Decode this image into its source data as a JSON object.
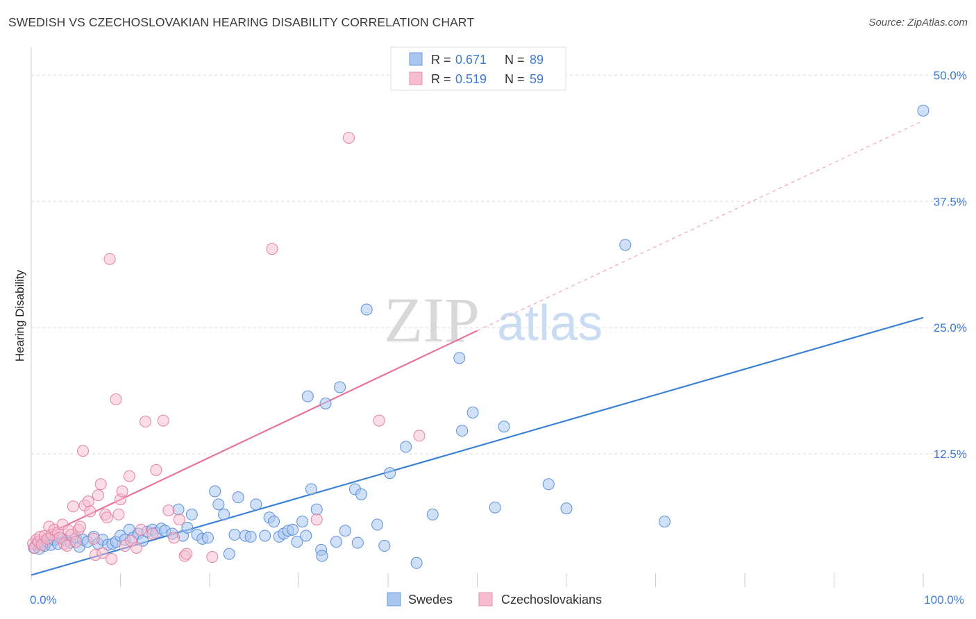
{
  "title": "SWEDISH VS CZECHOSLOVAKIAN HEARING DISABILITY CORRELATION CHART",
  "source": "Source: ZipAtlas.com",
  "watermark": {
    "zip": "ZIP",
    "atlas": "atlas"
  },
  "colors": {
    "blue": "#3b82d6",
    "pink": "#e8749a",
    "blue_fill": "#a9c6f0",
    "pink_fill": "#f6bcd0",
    "axis_text": "#3f7bd6"
  },
  "chart_data": {
    "type": "scatter",
    "xlabel": "",
    "ylabel": "Hearing Disability",
    "xlim": [
      0,
      100
    ],
    "ylim": [
      0,
      52.5
    ],
    "x_tick_labels": [
      {
        "value": 0,
        "label": "0.0%"
      },
      {
        "value": 100,
        "label": "100.0%"
      }
    ],
    "y_tick_labels": [
      {
        "value": 12.5,
        "label": "12.5%"
      },
      {
        "value": 25,
        "label": "25.0%"
      },
      {
        "value": 37.5,
        "label": "37.5%"
      },
      {
        "value": 50,
        "label": "50.0%"
      }
    ],
    "legend": [
      {
        "name": "Swedes",
        "r_label": "R = ",
        "r": "0.671",
        "n_label": "N = ",
        "n": "89"
      },
      {
        "name": "Czechoslovakians",
        "r_label": "R = ",
        "r": "0.519",
        "n_label": "N = ",
        "n": "59"
      }
    ],
    "series": [
      {
        "name": "Swedes",
        "trend": {
          "x0": 0,
          "y0": 0.5,
          "x1": 100,
          "y1": 26.0
        },
        "points": [
          [
            0.3,
            3.2
          ],
          [
            0.6,
            3.6
          ],
          [
            0.9,
            3.1
          ],
          [
            1.2,
            3.7
          ],
          [
            1.5,
            3.4
          ],
          [
            1.8,
            3.8
          ],
          [
            2.2,
            3.5
          ],
          [
            2.6,
            4.0
          ],
          [
            3.0,
            3.6
          ],
          [
            3.5,
            4.1
          ],
          [
            4.0,
            3.9
          ],
          [
            4.4,
            3.7
          ],
          [
            5.0,
            4.2
          ],
          [
            5.4,
            3.3
          ],
          [
            5.8,
            4.0
          ],
          [
            6.3,
            3.8
          ],
          [
            7.0,
            4.3
          ],
          [
            7.5,
            3.6
          ],
          [
            8.0,
            4.0
          ],
          [
            8.6,
            3.5
          ],
          [
            9.1,
            3.6
          ],
          [
            9.5,
            3.8
          ],
          [
            10.0,
            4.4
          ],
          [
            10.5,
            4.0
          ],
          [
            11.0,
            5.0
          ],
          [
            11.4,
            4.2
          ],
          [
            12.0,
            4.6
          ],
          [
            12.5,
            3.9
          ],
          [
            13.0,
            4.8
          ],
          [
            13.6,
            5.0
          ],
          [
            14.0,
            4.7
          ],
          [
            14.6,
            5.1
          ],
          [
            15.0,
            4.9
          ],
          [
            15.8,
            4.6
          ],
          [
            16.5,
            7.0
          ],
          [
            17.0,
            4.4
          ],
          [
            17.5,
            5.2
          ],
          [
            18.0,
            6.5
          ],
          [
            18.6,
            4.5
          ],
          [
            19.2,
            4.1
          ],
          [
            19.8,
            4.2
          ],
          [
            20.6,
            8.8
          ],
          [
            21.0,
            7.5
          ],
          [
            21.6,
            6.5
          ],
          [
            22.2,
            2.6
          ],
          [
            22.8,
            4.5
          ],
          [
            23.2,
            8.2
          ],
          [
            24.0,
            4.4
          ],
          [
            24.6,
            4.3
          ],
          [
            25.2,
            7.5
          ],
          [
            26.2,
            4.4
          ],
          [
            26.7,
            6.2
          ],
          [
            27.2,
            5.8
          ],
          [
            27.8,
            4.3
          ],
          [
            28.3,
            4.6
          ],
          [
            28.8,
            4.9
          ],
          [
            29.3,
            5.0
          ],
          [
            29.8,
            3.8
          ],
          [
            30.4,
            5.8
          ],
          [
            30.8,
            4.4
          ],
          [
            31.0,
            18.2
          ],
          [
            31.4,
            9.0
          ],
          [
            32.0,
            7.0
          ],
          [
            32.5,
            3.0
          ],
          [
            32.6,
            2.4
          ],
          [
            33.0,
            17.5
          ],
          [
            34.2,
            3.8
          ],
          [
            34.6,
            19.1
          ],
          [
            35.2,
            4.9
          ],
          [
            36.3,
            9.0
          ],
          [
            36.6,
            3.7
          ],
          [
            37.0,
            8.5
          ],
          [
            37.6,
            26.8
          ],
          [
            38.8,
            5.5
          ],
          [
            39.6,
            3.4
          ],
          [
            40.2,
            10.6
          ],
          [
            42.0,
            13.2
          ],
          [
            43.2,
            1.7
          ],
          [
            45.0,
            6.5
          ],
          [
            48.0,
            22.0
          ],
          [
            48.3,
            14.8
          ],
          [
            49.5,
            16.6
          ],
          [
            52.0,
            7.2
          ],
          [
            53.0,
            15.2
          ],
          [
            58.0,
            9.5
          ],
          [
            60.0,
            7.1
          ],
          [
            66.6,
            33.2
          ],
          [
            71.0,
            5.8
          ],
          [
            100.0,
            46.5
          ]
        ]
      },
      {
        "name": "Czechoslovakians",
        "trend": {
          "x0": 0,
          "y0": 3.8,
          "x1": 50,
          "y1": 24.7
        },
        "trend_ext": {
          "x0": 50,
          "y0": 24.7,
          "x1": 100,
          "y1": 45.5
        },
        "points": [
          [
            0.2,
            3.6
          ],
          [
            0.4,
            3.2
          ],
          [
            0.6,
            4.0
          ],
          [
            0.8,
            3.8
          ],
          [
            1.0,
            4.3
          ],
          [
            1.2,
            3.5
          ],
          [
            1.5,
            4.4
          ],
          [
            1.8,
            4.1
          ],
          [
            2.0,
            5.3
          ],
          [
            2.3,
            4.5
          ],
          [
            2.6,
            5.0
          ],
          [
            3.0,
            4.7
          ],
          [
            3.2,
            4.2
          ],
          [
            3.5,
            5.5
          ],
          [
            3.7,
            3.6
          ],
          [
            4.0,
            3.4
          ],
          [
            4.2,
            4.9
          ],
          [
            4.5,
            4.5
          ],
          [
            4.7,
            7.3
          ],
          [
            5.0,
            3.8
          ],
          [
            5.3,
            5.0
          ],
          [
            5.5,
            5.3
          ],
          [
            5.8,
            12.8
          ],
          [
            6.0,
            7.4
          ],
          [
            6.4,
            7.8
          ],
          [
            6.6,
            6.8
          ],
          [
            7.0,
            4.1
          ],
          [
            7.2,
            2.5
          ],
          [
            7.5,
            8.4
          ],
          [
            7.8,
            9.5
          ],
          [
            8.0,
            2.7
          ],
          [
            8.3,
            6.5
          ],
          [
            8.5,
            6.2
          ],
          [
            8.8,
            31.8
          ],
          [
            9.0,
            2.1
          ],
          [
            9.5,
            17.9
          ],
          [
            9.8,
            6.5
          ],
          [
            10.0,
            8.0
          ],
          [
            10.2,
            8.8
          ],
          [
            10.5,
            3.4
          ],
          [
            11.0,
            10.3
          ],
          [
            11.2,
            3.9
          ],
          [
            11.8,
            3.2
          ],
          [
            12.3,
            5.0
          ],
          [
            12.8,
            15.7
          ],
          [
            13.6,
            4.6
          ],
          [
            14.0,
            10.9
          ],
          [
            14.8,
            15.8
          ],
          [
            15.4,
            6.9
          ],
          [
            16.0,
            4.2
          ],
          [
            16.6,
            6.0
          ],
          [
            17.2,
            2.4
          ],
          [
            17.4,
            2.6
          ],
          [
            20.3,
            2.3
          ],
          [
            27.0,
            32.8
          ],
          [
            32.0,
            6.0
          ],
          [
            35.6,
            43.8
          ],
          [
            39.0,
            15.8
          ],
          [
            43.5,
            14.3
          ]
        ]
      }
    ]
  }
}
